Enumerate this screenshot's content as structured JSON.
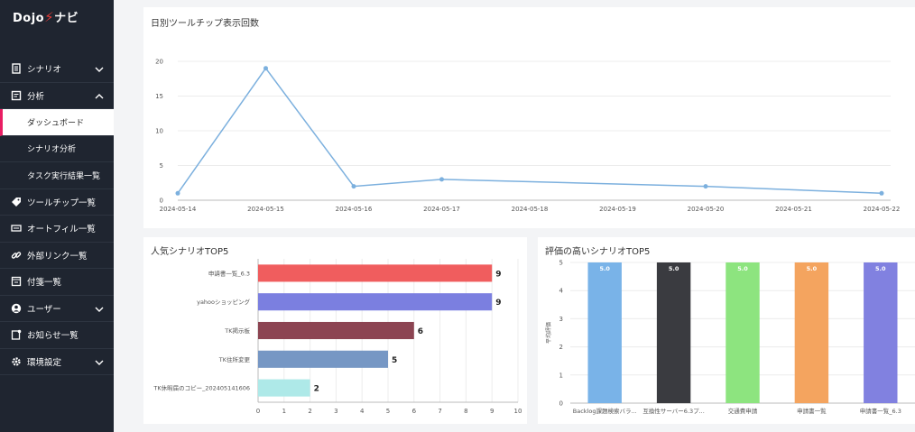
{
  "app": {
    "logo_text": "Dojo",
    "logo_suffix": "ナビ"
  },
  "sidebar": {
    "items": [
      {
        "label": "シナリオ",
        "icon": "document-icon",
        "expand": "down"
      },
      {
        "label": "分析",
        "icon": "report-icon",
        "expand": "up"
      },
      {
        "label": "ツールチップ一覧",
        "icon": "tag-icon"
      },
      {
        "label": "オートフィル一覧",
        "icon": "keyboard-icon"
      },
      {
        "label": "外部リンク一覧",
        "icon": "link-icon"
      },
      {
        "label": "付箋一覧",
        "icon": "sticky-note-icon"
      },
      {
        "label": "ユーザー",
        "icon": "user-circle-icon",
        "expand": "down"
      },
      {
        "label": "お知らせ一覧",
        "icon": "notice-icon"
      },
      {
        "label": "環境設定",
        "icon": "gear-icon",
        "expand": "down"
      }
    ],
    "sub_items": [
      "ダッシュボード",
      "シナリオ分析",
      "タスク実行結果一覧"
    ]
  },
  "line_card": {
    "title": "日別ツールチップ表示回数",
    "chart_data": {
      "type": "line",
      "x": [
        "2024-05-14",
        "2024-05-15",
        "2024-05-16",
        "2024-05-17",
        "2024-05-18",
        "2024-05-19",
        "2024-05-20",
        "2024-05-21",
        "2024-05-22"
      ],
      "points": [
        {
          "x": "2024-05-14",
          "y": 1
        },
        {
          "x": "2024-05-15",
          "y": 19
        },
        {
          "x": "2024-05-16",
          "y": 2
        },
        {
          "x": "2024-05-17",
          "y": 3
        },
        {
          "x": "2024-05-20",
          "y": 2
        },
        {
          "x": "2024-05-22",
          "y": 1
        }
      ],
      "yticks": [
        0,
        5,
        10,
        15,
        20
      ],
      "ylim": [
        0,
        20
      ],
      "color": "#7cb0de"
    }
  },
  "bar_card": {
    "title": "人気シナリオTOP5",
    "chart_data": {
      "type": "bar",
      "orientation": "horizontal",
      "categories": [
        "申請書一覧_6.3",
        "yahooショッピング",
        "TK掲示板",
        "TK住所変更",
        "TK休暇届のコピー_202405141606"
      ],
      "values": [
        9,
        9,
        6,
        5,
        2
      ],
      "colors": [
        "#f05d5e",
        "#7b7fe0",
        "#8c4452",
        "#7697c4",
        "#aee9e8"
      ],
      "xticks": [
        0,
        1,
        2,
        3,
        4,
        5,
        6,
        7,
        8,
        9,
        10
      ],
      "xlim": [
        0,
        10
      ]
    }
  },
  "rating_card": {
    "title": "評価の高いシナリオTOP5",
    "chart_data": {
      "type": "bar",
      "orientation": "vertical",
      "categories": [
        "Backlog課題検索バラ...",
        "互換性サーバー6.3プ...",
        "交通費申請",
        "申請書一覧",
        "申請書一覧_6.3"
      ],
      "values": [
        5.0,
        5.0,
        5.0,
        5.0,
        5.0
      ],
      "value_labels": [
        "5.0",
        "5.0",
        "5.0",
        "5.0",
        "5.0"
      ],
      "colors": [
        "#79b3e8",
        "#3a3b40",
        "#8de47f",
        "#f4a45f",
        "#8181e0"
      ],
      "yticks": [
        0,
        1,
        2,
        3,
        4,
        5
      ],
      "ylim": [
        0,
        5
      ],
      "ylabel": "平均評価"
    }
  }
}
